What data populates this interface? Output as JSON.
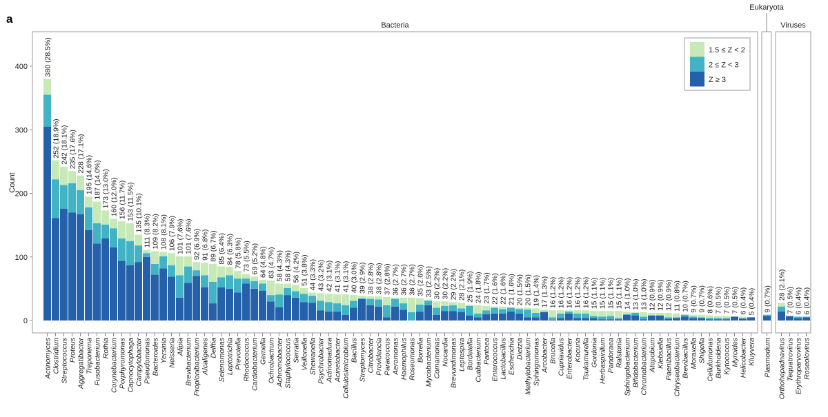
{
  "panel_letter": "a",
  "chart_data": {
    "type": "bar",
    "stacked": true,
    "ylabel": "Count",
    "ylim": [
      0,
      450
    ],
    "yticks": [
      0,
      100,
      200,
      300,
      400
    ],
    "grid": false,
    "legend_placement": "top-right",
    "series_names": [
      "1.5 ≤ Z < 2",
      "2 ≤ Z < 3",
      "Z ≥ 3"
    ],
    "colors": {
      "z15": "#c7e9b8",
      "z2": "#41b3c4",
      "z3": "#2461aa"
    },
    "groups": [
      {
        "name": "Bacteria",
        "categories": [
          "Actinomyces",
          "Clostridium",
          "Streptococcus",
          "Proteus",
          "Aggregatibacter",
          "Treponema",
          "Fusobacterium",
          "Rothia",
          "Corynebacterium",
          "Porphyromonas",
          "Capnocytophaga",
          "Campylobacter",
          "Pseudomonas",
          "Bacteroides",
          "Yersinia",
          "Neisseria",
          "Afipia",
          "Brevibacterium",
          "Propionibacterium",
          "Alcaligenes",
          "Delftia",
          "Selenomonas",
          "Leptotrichia",
          "Prevotella",
          "Rhodococcus",
          "Cardiobacterium",
          "Gemella",
          "Ochrobactrum",
          "Achromobacter",
          "Staphylococcus",
          "Serratia",
          "Veillonella",
          "Shewanella",
          "Psychrobacter",
          "Actinomadura",
          "Acinetobacter",
          "Cellulosimicrobium",
          "Bacillus",
          "Streptomyces",
          "Citrobacter",
          "Providencia",
          "Paracoccus",
          "Aeromonas",
          "Haemophilus",
          "Roseomonas",
          "Borrelia",
          "Mycobacterium",
          "Comamonas",
          "Nocardia",
          "Brevundimonas",
          "Leptospira",
          "Bordetella",
          "Cutibacterium",
          "Pantoea",
          "Enterococcus",
          "Lactobacillus",
          "Escherichia",
          "Dietzia",
          "Methylobacterium",
          "Sphingomonas",
          "Arcobacter",
          "Brucella",
          "Cupriavidus",
          "Enterobacter",
          "Kocuria",
          "Tsukamurella",
          "Gordonia",
          "Herbaspirillum",
          "Pandoraea",
          "Ralstonia",
          "Sphingobacterium",
          "Bifidobacterium",
          "Chromobacterium",
          "Atopobium",
          "Klebsiella",
          "Paenibacillus",
          "Chryseobacterium",
          "Brevibacillus",
          "Moraxella",
          "Shigella",
          "Cellulomonas",
          "Burkholderia",
          "Kytococcus",
          "Myroides",
          "Helicobacter",
          "Kluyvera"
        ],
        "totals": [
          380,
          252,
          242,
          235,
          228,
          195,
          187,
          173,
          160,
          156,
          153,
          135,
          111,
          109,
          108,
          106,
          101,
          101,
          92,
          91,
          89,
          85,
          84,
          78,
          73,
          69,
          64,
          63,
          58,
          58,
          56,
          51,
          44,
          43,
          42,
          41,
          41,
          40,
          39,
          38,
          38,
          37,
          36,
          36,
          36,
          35,
          33,
          30,
          30,
          29,
          28,
          25,
          24,
          23,
          22,
          22,
          21,
          20,
          20,
          19,
          17,
          16,
          16,
          16,
          16,
          16,
          15,
          15,
          15,
          15,
          14,
          13,
          13,
          12,
          12,
          12,
          11,
          10,
          9,
          9,
          8,
          7,
          7,
          7,
          6,
          5
        ],
        "percents": [
          "28.5%",
          "18.9%",
          "18.1%",
          "17.6%",
          "17.1%",
          "14.6%",
          "14.0%",
          "13.0%",
          "12.0%",
          "11.7%",
          "11.5%",
          "10.1%",
          "8.3%",
          "8.2%",
          "8.1%",
          "7.9%",
          "7.6%",
          "7.6%",
          "6.9%",
          "6.8%",
          "6.7%",
          "6.4%",
          "6.3%",
          "5.8%",
          "5.5%",
          "5.2%",
          "4.8%",
          "4.7%",
          "4.3%",
          "4.3%",
          "4.2%",
          "3.8%",
          "3.3%",
          "3.2%",
          "3.1%",
          "3.1%",
          "3.1%",
          "3.0%",
          "2.9%",
          "2.8%",
          "2.8%",
          "2.8%",
          "2.7%",
          "2.7%",
          "2.7%",
          "2.6%",
          "2.5%",
          "2.2%",
          "2.2%",
          "2.2%",
          "2.1%",
          "1.9%",
          "1.8%",
          "1.7%",
          "1.6%",
          "1.6%",
          "1.6%",
          "1.5%",
          "1.5%",
          "1.4%",
          "1.3%",
          "1.2%",
          "1.2%",
          "1.2%",
          "1.2%",
          "1.2%",
          "1.1%",
          "1.1%",
          "1.1%",
          "1.1%",
          "1.0%",
          "1.0%",
          "1.0%",
          "0.9%",
          "0.9%",
          "0.9%",
          "0.8%",
          "0.7%",
          "0.7%",
          "0.7%",
          "0.6%",
          "0.5%",
          "0.5%",
          "0.5%",
          "0.4%",
          "0.4%"
        ],
        "z3": [
          305,
          161,
          176,
          170,
          167,
          142,
          121,
          129,
          115,
          94,
          87,
          92,
          100,
          72,
          82,
          69,
          36,
          59,
          70,
          52,
          27,
          52,
          50,
          44,
          58,
          50,
          47,
          30,
          21,
          40,
          36,
          29,
          28,
          16,
          14,
          14,
          9,
          20,
          34,
          24,
          22,
          5,
          22,
          17,
          0,
          14,
          24,
          9,
          15,
          15,
          13,
          8,
          5,
          10,
          11,
          11,
          14,
          11,
          5,
          5,
          13,
          1,
          4,
          11,
          4,
          4,
          4,
          2,
          2,
          2,
          9,
          8,
          2,
          8,
          8,
          3,
          4,
          6,
          4,
          4,
          2,
          2,
          2,
          6,
          3,
          5
        ],
        "z2": [
          50,
          61,
          37,
          46,
          38,
          36,
          32,
          22,
          30,
          35,
          38,
          26,
          6,
          17,
          19,
          18,
          35,
          26,
          9,
          19,
          34,
          16,
          21,
          22,
          8,
          12,
          11,
          10,
          20,
          11,
          10,
          13,
          11,
          15,
          15,
          13,
          15,
          11,
          1,
          10,
          11,
          19,
          12,
          10,
          13,
          11,
          7,
          11,
          8,
          9,
          6,
          15,
          6,
          6,
          9,
          7,
          6,
          7,
          12,
          7,
          1,
          4,
          7,
          3,
          7,
          7,
          3,
          4,
          5,
          2,
          1,
          4,
          4,
          0,
          0,
          2,
          1,
          3,
          2,
          1,
          2,
          2,
          2,
          0,
          1,
          0
        ],
        "z15": [
          25,
          30,
          29,
          19,
          23,
          17,
          34,
          22,
          15,
          27,
          28,
          17,
          5,
          20,
          7,
          19,
          30,
          16,
          13,
          20,
          28,
          17,
          13,
          12,
          7,
          7,
          6,
          23,
          17,
          7,
          10,
          9,
          5,
          12,
          13,
          14,
          17,
          9,
          4,
          4,
          5,
          13,
          2,
          9,
          23,
          10,
          2,
          10,
          7,
          5,
          9,
          2,
          13,
          7,
          2,
          4,
          1,
          2,
          3,
          7,
          3,
          11,
          5,
          2,
          5,
          5,
          8,
          9,
          8,
          11,
          4,
          1,
          7,
          4,
          4,
          7,
          6,
          1,
          3,
          4,
          4,
          3,
          3,
          1,
          2,
          0
        ]
      },
      {
        "name": "Eukaryota",
        "categories": [
          "Plasmodium"
        ],
        "totals": [
          9
        ],
        "percents": [
          "0.7%"
        ],
        "z3": [
          7
        ],
        "z2": [
          2
        ],
        "z15": [
          0
        ]
      },
      {
        "name": "Viruses",
        "categories": [
          "Orthohepadnavirus",
          "Tequatrovirus",
          "Erythroparvovirus",
          "Roseolovirus"
        ],
        "totals": [
          28,
          7,
          6,
          6
        ],
        "percents": [
          "2.1%",
          "0.5%",
          "0.4%",
          "0.4%"
        ],
        "z3": [
          14,
          7,
          4,
          5
        ],
        "z2": [
          8,
          0,
          2,
          1
        ],
        "z15": [
          6,
          0,
          0,
          0
        ]
      }
    ]
  }
}
